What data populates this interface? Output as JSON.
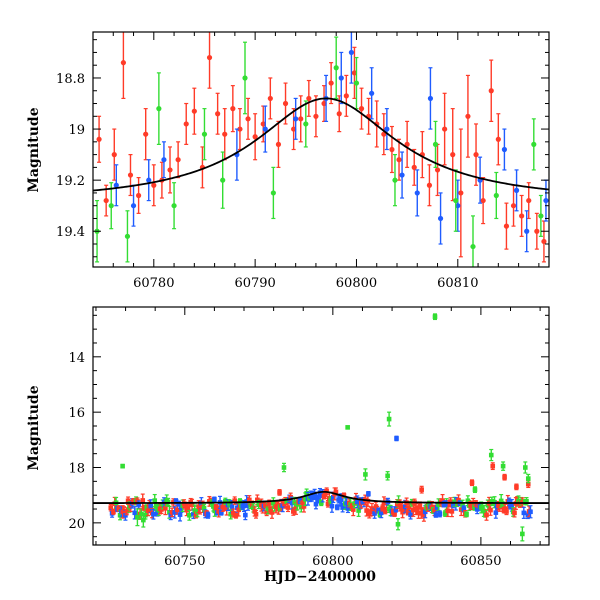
{
  "chart_data": [
    {
      "type": "scatter",
      "ylabel": "Magnitude",
      "xlabel": "",
      "xlim": [
        60774,
        60819
      ],
      "ylim": [
        19.54,
        18.62
      ],
      "y_inverted": true,
      "x_ticks": [
        60780,
        60790,
        60800,
        60810
      ],
      "y_ticks": [
        18.8,
        19,
        19.2,
        19.4
      ],
      "y_tick_labels": [
        "18.8",
        "19",
        "19.2",
        "19.4"
      ],
      "model_curve": {
        "color": "#000000",
        "baseline": 19.29,
        "peak_mag": 18.88,
        "peak_time": 60797,
        "width": 8.5
      },
      "series": [
        {
          "color": "#ff3b28",
          "points": [
            [
              60774.6,
              19.04,
              0.09
            ],
            [
              60775.3,
              19.28,
              0.06
            ],
            [
              60776.1,
              19.1,
              0.1
            ],
            [
              60777.0,
              18.74,
              0.14
            ],
            [
              60777.7,
              19.18,
              0.08
            ],
            [
              60778.5,
              19.26,
              0.07
            ],
            [
              60779.2,
              19.02,
              0.1
            ],
            [
              60780.0,
              19.22,
              0.08
            ],
            [
              60780.8,
              19.2,
              0.07
            ],
            [
              60781.6,
              19.16,
              0.09
            ],
            [
              60782.4,
              19.12,
              0.07
            ],
            [
              60783.2,
              18.98,
              0.08
            ],
            [
              60784.0,
              18.93,
              0.09
            ],
            [
              60784.8,
              19.15,
              0.08
            ],
            [
              60785.5,
              18.72,
              0.12
            ],
            [
              60786.3,
              18.94,
              0.08
            ],
            [
              60787.0,
              19.02,
              0.1
            ],
            [
              60787.8,
              18.92,
              0.09
            ],
            [
              60788.5,
              19.0,
              0.08
            ],
            [
              60789.3,
              18.96,
              0.08
            ],
            [
              60790.0,
              19.03,
              0.09
            ],
            [
              60790.8,
              18.98,
              0.07
            ],
            [
              60791.5,
              18.88,
              0.08
            ],
            [
              60792.3,
              19.06,
              0.09
            ],
            [
              60793.0,
              18.9,
              0.08
            ],
            [
              60793.8,
              19.0,
              0.08
            ],
            [
              60794.5,
              18.96,
              0.09
            ],
            [
              60795.3,
              18.88,
              0.07
            ],
            [
              60796.0,
              18.95,
              0.08
            ],
            [
              60796.8,
              18.9,
              0.07
            ],
            [
              60797.5,
              18.82,
              0.08
            ],
            [
              60798.3,
              18.94,
              0.07
            ],
            [
              60799.0,
              18.87,
              0.08
            ],
            [
              60799.8,
              18.78,
              0.1
            ],
            [
              60800.5,
              18.92,
              0.08
            ],
            [
              60801.2,
              18.95,
              0.07
            ],
            [
              60802.0,
              18.98,
              0.09
            ],
            [
              60802.7,
              19.02,
              0.08
            ],
            [
              60803.5,
              19.08,
              0.09
            ],
            [
              60804.2,
              19.12,
              0.08
            ],
            [
              60805.0,
              19.06,
              0.09
            ],
            [
              60805.7,
              19.15,
              0.07
            ],
            [
              60806.5,
              19.1,
              0.09
            ],
            [
              60807.2,
              19.22,
              0.08
            ],
            [
              60808.0,
              19.16,
              0.1
            ],
            [
              60808.7,
              19.0,
              0.14
            ],
            [
              60809.5,
              19.1,
              0.18
            ],
            [
              60810.3,
              19.25,
              0.25
            ],
            [
              60811.0,
              18.95,
              0.16
            ],
            [
              60811.8,
              19.1,
              0.12
            ],
            [
              60812.5,
              19.28,
              0.09
            ],
            [
              60813.3,
              18.85,
              0.12
            ],
            [
              60814.0,
              19.04,
              0.1
            ],
            [
              60814.8,
              19.38,
              0.09
            ],
            [
              60815.5,
              19.3,
              0.08
            ],
            [
              60816.3,
              19.34,
              0.08
            ],
            [
              60817.0,
              19.28,
              0.07
            ],
            [
              60817.8,
              19.4,
              0.07
            ],
            [
              60818.5,
              19.44,
              0.08
            ]
          ]
        },
        {
          "color": "#1f5cff",
          "points": [
            [
              60776.3,
              19.22,
              0.08
            ],
            [
              60778.0,
              19.3,
              0.08
            ],
            [
              60779.5,
              19.2,
              0.08
            ],
            [
              60781.0,
              19.12,
              0.07
            ],
            [
              60788.2,
              19.1,
              0.1
            ],
            [
              60791.0,
              19.0,
              0.09
            ],
            [
              60794.0,
              18.96,
              0.08
            ],
            [
              60797.0,
              18.88,
              0.09
            ],
            [
              60798.5,
              18.8,
              0.1
            ],
            [
              60799.5,
              18.7,
              0.12
            ],
            [
              60801.5,
              18.86,
              0.1
            ],
            [
              60803.0,
              19.0,
              0.08
            ],
            [
              60804.5,
              19.18,
              0.09
            ],
            [
              60806.0,
              19.25,
              0.09
            ],
            [
              60807.3,
              18.88,
              0.12
            ],
            [
              60808.3,
              19.35,
              0.1
            ],
            [
              60810.0,
              19.3,
              0.1
            ],
            [
              60812.2,
              19.2,
              0.09
            ],
            [
              60814.6,
              19.08,
              0.08
            ],
            [
              60815.8,
              19.24,
              0.08
            ],
            [
              60816.8,
              19.4,
              0.08
            ],
            [
              60818.7,
              19.28,
              0.08
            ]
          ]
        },
        {
          "color": "#33dd33",
          "points": [
            [
              60774.4,
              19.4,
              0.12
            ],
            [
              60775.8,
              19.3,
              0.09
            ],
            [
              60777.4,
              19.42,
              0.1
            ],
            [
              60780.5,
              18.92,
              0.14
            ],
            [
              60782.0,
              19.3,
              0.09
            ],
            [
              60785.0,
              19.02,
              0.1
            ],
            [
              60786.8,
              19.2,
              0.11
            ],
            [
              60789.0,
              18.8,
              0.14
            ],
            [
              60791.8,
              19.25,
              0.1
            ],
            [
              60795.0,
              18.98,
              0.09
            ],
            [
              60798.0,
              18.76,
              0.12
            ],
            [
              60800.0,
              18.82,
              0.1
            ],
            [
              60803.8,
              19.2,
              0.1
            ],
            [
              60807.8,
              19.06,
              0.09
            ],
            [
              60809.8,
              19.28,
              0.12
            ],
            [
              60811.5,
              19.46,
              0.12
            ],
            [
              60813.8,
              19.26,
              0.09
            ],
            [
              60817.5,
              19.06,
              0.1
            ],
            [
              60818.2,
              19.34,
              0.08
            ]
          ]
        }
      ]
    },
    {
      "type": "scatter",
      "ylabel": "Magnitude",
      "xlabel": "HJD−2400000",
      "xlim": [
        60719,
        60873
      ],
      "ylim": [
        20.8,
        12.2
      ],
      "y_inverted": true,
      "x_ticks": [
        60750,
        60800,
        60850
      ],
      "y_ticks": [
        14,
        16,
        18,
        20
      ],
      "y_tick_labels": [
        "14",
        "16",
        "18",
        "20"
      ],
      "model_curve": {
        "color": "#000000",
        "baseline": 19.29,
        "peak_mag": 18.88,
        "peak_time": 60797,
        "width": 8.5
      },
      "band": {
        "x_start": 60725,
        "x_end": 60867,
        "mean": 19.45,
        "spread": 0.28
      },
      "series": [
        {
          "color": "#ff3b28",
          "points": [
            [
              60847.0,
              18.55,
              0.1
            ],
            [
              60854.0,
              17.95,
              0.12
            ],
            [
              60858.0,
              18.35,
              0.1
            ],
            [
              60862.0,
              18.7,
              0.1
            ],
            [
              60866.0,
              18.6,
              0.12
            ],
            [
              60782.0,
              18.9,
              0.1
            ],
            [
              60830.0,
              18.8,
              0.12
            ]
          ]
        },
        {
          "color": "#1f5cff",
          "points": [
            [
              60821.5,
              16.95,
              0.08
            ],
            [
              60760.0,
              19.15,
              0.08
            ],
            [
              60812.0,
              18.95,
              0.08
            ],
            [
              60838.0,
              19.3,
              0.1
            ]
          ]
        },
        {
          "color": "#33dd33",
          "points": [
            [
              60834.5,
              12.55,
              0.1
            ],
            [
              60805.0,
              16.55,
              0.05
            ],
            [
              60819.0,
              16.25,
              0.25
            ],
            [
              60818.5,
              18.3,
              0.15
            ],
            [
              60729.0,
              17.95,
              0.06
            ],
            [
              60734.0,
              19.8,
              0.3
            ],
            [
              60736.0,
              19.9,
              0.25
            ],
            [
              60783.5,
              18.0,
              0.15
            ],
            [
              60811.0,
              18.25,
              0.2
            ],
            [
              60853.5,
              17.55,
              0.2
            ],
            [
              60857.5,
              17.95,
              0.15
            ],
            [
              60865.0,
              18.0,
              0.2
            ],
            [
              60866.0,
              18.4,
              0.15
            ],
            [
              60864.0,
              20.4,
              0.25
            ],
            [
              60822.0,
              20.05,
              0.2
            ],
            [
              60848.0,
              18.8,
              0.1
            ]
          ]
        }
      ]
    }
  ]
}
